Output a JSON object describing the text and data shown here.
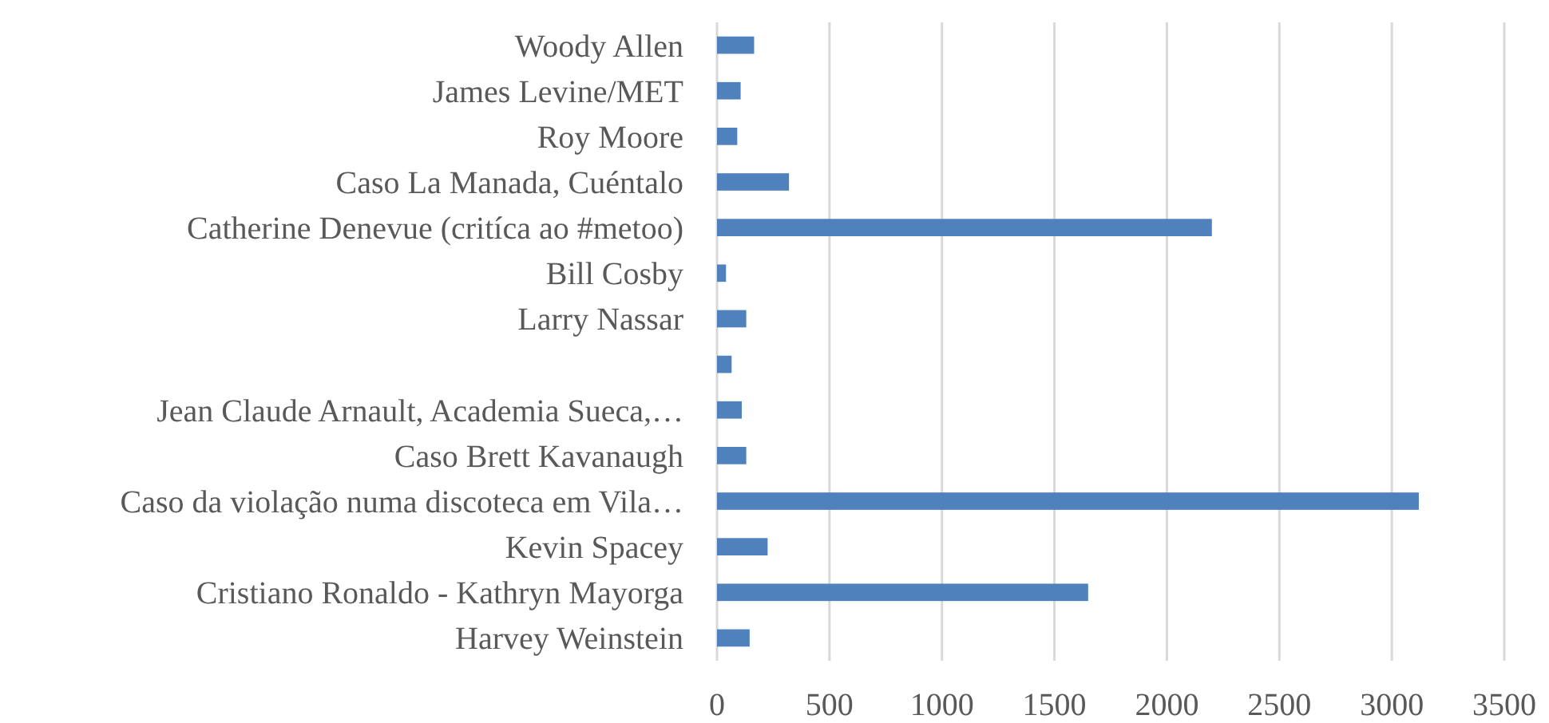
{
  "chart_data": {
    "type": "bar",
    "orientation": "horizontal",
    "categories": [
      "Woody Allen",
      "James Levine/MET",
      "Roy Moore",
      "Caso La Manada, Cuéntalo",
      "Catherine Denevue (critíca ao #metoo)",
      "Bill Cosby",
      "Larry Nassar",
      null,
      "Jean Claude Arnault, Academia Sueca,…",
      "Caso Brett Kavanaugh",
      "Caso da violação numa discoteca em Vila…",
      "Kevin Spacey",
      "Cristiano Ronaldo - Kathryn Mayorga",
      "Harvey Weinstein"
    ],
    "values": [
      165,
      105,
      90,
      320,
      2200,
      40,
      130,
      65,
      110,
      130,
      3120,
      225,
      1650,
      145
    ],
    "color": "#4f81bd",
    "xlim": [
      0,
      3500
    ],
    "xticks": [
      0,
      500,
      1000,
      1500,
      2000,
      2500,
      3000,
      3500
    ],
    "grid": "x"
  }
}
